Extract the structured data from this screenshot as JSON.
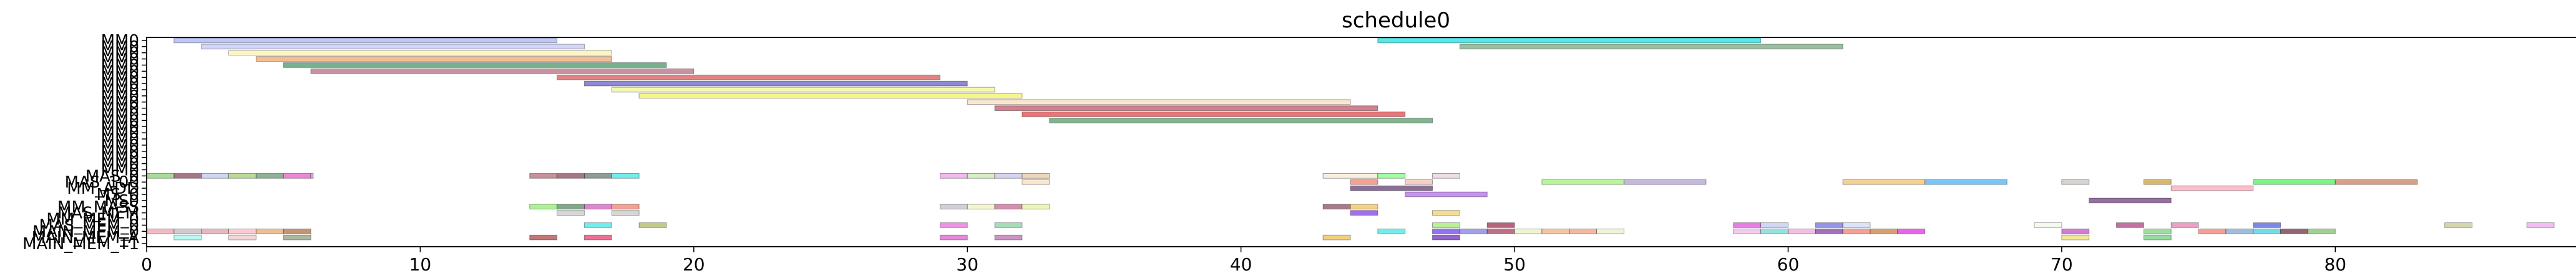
{
  "chart_data": {
    "type": "gantt",
    "title": "schedule0",
    "xlim": [
      0,
      88
    ],
    "x_ticks": [
      0,
      10,
      20,
      30,
      40,
      50,
      60,
      70,
      80
    ],
    "grid": false,
    "legend": "none",
    "row_labels": [
      "MM0",
      "MM0",
      "MM0",
      "MM0",
      "MM0",
      "MM0",
      "MM0",
      "MM0",
      "MM0",
      "MM0",
      "MM0",
      "MM0",
      "MM0",
      "MM0",
      "MM0",
      "MM0",
      "MM0",
      "MM0",
      "MM0",
      "MM0",
      "MM0",
      "MM0",
      "MAS_0",
      "MAS_100",
      "MM_ADD",
      "MS_0",
      "MS0",
      "MM_MASS",
      "MAS_MEM",
      "MM_MEM_0",
      "MAS_MEM_0",
      "MAIN_MEM_0",
      "MAIN_MEM_A",
      "MAIN_MEM_T1"
    ],
    "tasks": [
      {
        "row": 0,
        "start": 1.0,
        "end": 15.0,
        "color": "#aab4f0"
      },
      {
        "row": 0,
        "start": 45.0,
        "end": 59.0,
        "color": "#22e0e0"
      },
      {
        "row": 1,
        "start": 2.0,
        "end": 16.0,
        "color": "#c6c8f4"
      },
      {
        "row": 1,
        "start": 48.0,
        "end": 62.0,
        "color": "#7aa87e"
      },
      {
        "row": 2,
        "start": 3.0,
        "end": 17.0,
        "color": "#faf0b0"
      },
      {
        "row": 3,
        "start": 4.0,
        "end": 17.0,
        "color": "#f0a870"
      },
      {
        "row": 4,
        "start": 5.0,
        "end": 19.0,
        "color": "#4a9a6a"
      },
      {
        "row": 5,
        "start": 6.0,
        "end": 20.0,
        "color": "#b86c80"
      },
      {
        "row": 6,
        "start": 15.0,
        "end": 29.0,
        "color": "#d85a5a"
      },
      {
        "row": 7,
        "start": 16.0,
        "end": 30.0,
        "color": "#6a62c8"
      },
      {
        "row": 8,
        "start": 17.0,
        "end": 31.0,
        "color": "#f0f590"
      },
      {
        "row": 9,
        "start": 18.0,
        "end": 32.0,
        "color": "#f4f060"
      },
      {
        "row": 10,
        "start": 30.0,
        "end": 44.0,
        "color": "#f8dcc0"
      },
      {
        "row": 11,
        "start": 31.0,
        "end": 45.0,
        "color": "#c25868"
      },
      {
        "row": 12,
        "start": 32.0,
        "end": 46.0,
        "color": "#e0484c"
      },
      {
        "row": 13,
        "start": 33.0,
        "end": 47.0,
        "color": "#5a9a6c"
      },
      {
        "row": 22,
        "start": 0.0,
        "end": 1.0,
        "color": "#8cd070"
      },
      {
        "row": 22,
        "start": 1.0,
        "end": 2.0,
        "color": "#8a4a5a"
      },
      {
        "row": 22,
        "start": 2.0,
        "end": 3.0,
        "color": "#c0c8ee"
      },
      {
        "row": 22,
        "start": 3.0,
        "end": 4.0,
        "color": "#a0d070"
      },
      {
        "row": 22,
        "start": 4.0,
        "end": 5.0,
        "color": "#6a9a70"
      },
      {
        "row": 22,
        "start": 5.0,
        "end": 6.0,
        "color": "#e860c8"
      },
      {
        "row": 22,
        "start": 6.0,
        "end": 6.0,
        "color": "#b0a8ec"
      },
      {
        "row": 22,
        "start": 14.0,
        "end": 15.0,
        "color": "#b86a7a"
      },
      {
        "row": 22,
        "start": 15.0,
        "end": 16.0,
        "color": "#8a4a5a"
      },
      {
        "row": 22,
        "start": 16.0,
        "end": 17.0,
        "color": "#6a7a70"
      },
      {
        "row": 22,
        "start": 17.0,
        "end": 18.0,
        "color": "#40e8e8"
      },
      {
        "row": 22,
        "start": 29.0,
        "end": 30.0,
        "color": "#f0a0e8"
      },
      {
        "row": 22,
        "start": 30.0,
        "end": 31.0,
        "color": "#c8e8b0"
      },
      {
        "row": 22,
        "start": 31.0,
        "end": 32.0,
        "color": "#c8c4ee"
      },
      {
        "row": 22,
        "start": 32.0,
        "end": 33.0,
        "color": "#e8c8a0"
      },
      {
        "row": 22,
        "start": 43.0,
        "end": 45.0,
        "color": "#f8e8d0"
      },
      {
        "row": 22,
        "start": 45.0,
        "end": 46.0,
        "color": "#80ff80"
      },
      {
        "row": 22,
        "start": 47.0,
        "end": 48.0,
        "color": "#e8d0e0"
      },
      {
        "row": 23,
        "start": 32.0,
        "end": 33.0,
        "color": "#f8dcc0"
      },
      {
        "row": 23,
        "start": 44.0,
        "end": 45.0,
        "color": "#f08070"
      },
      {
        "row": 23,
        "start": 46.0,
        "end": 47.0,
        "color": "#f0c0b0"
      },
      {
        "row": 23,
        "start": 51.0,
        "end": 54.0,
        "color": "#a0f078"
      },
      {
        "row": 23,
        "start": 54.0,
        "end": 57.0,
        "color": "#b0a0d0"
      },
      {
        "row": 23,
        "start": 62.0,
        "end": 65.0,
        "color": "#f0c070"
      },
      {
        "row": 23,
        "start": 65.0,
        "end": 68.0,
        "color": "#50b0f0"
      },
      {
        "row": 23,
        "start": 70.0,
        "end": 71.0,
        "color": "#c8c4c0"
      },
      {
        "row": 23,
        "start": 73.0,
        "end": 74.0,
        "color": "#c8a040"
      },
      {
        "row": 23,
        "start": 77.0,
        "end": 80.0,
        "color": "#50ee60"
      },
      {
        "row": 23,
        "start": 80.0,
        "end": 83.0,
        "color": "#c88060"
      },
      {
        "row": 24,
        "start": 44.0,
        "end": 47.0,
        "color": "#604070"
      },
      {
        "row": 24,
        "start": 74.0,
        "end": 77.0,
        "color": "#f8a8b8"
      },
      {
        "row": 25,
        "start": 46.0,
        "end": 49.0,
        "color": "#b070e8"
      },
      {
        "row": 26,
        "start": 71.0,
        "end": 74.0,
        "color": "#704080"
      },
      {
        "row": 27,
        "start": 14.0,
        "end": 15.0,
        "color": "#90ee70"
      },
      {
        "row": 27,
        "start": 15.0,
        "end": 16.0,
        "color": "#5a8a60"
      },
      {
        "row": 27,
        "start": 16.0,
        "end": 17.0,
        "color": "#d060c0"
      },
      {
        "row": 27,
        "start": 17.0,
        "end": 18.0,
        "color": "#f08070"
      },
      {
        "row": 27,
        "start": 29.0,
        "end": 30.0,
        "color": "#c0c0c8"
      },
      {
        "row": 27,
        "start": 30.0,
        "end": 31.0,
        "color": "#f0f0c0"
      },
      {
        "row": 27,
        "start": 31.0,
        "end": 32.0,
        "color": "#c86a90"
      },
      {
        "row": 27,
        "start": 32.0,
        "end": 33.0,
        "color": "#e8f0a0"
      },
      {
        "row": 27,
        "start": 43.0,
        "end": 44.0,
        "color": "#8a5060"
      },
      {
        "row": 27,
        "start": 44.0,
        "end": 45.0,
        "color": "#f0c060"
      },
      {
        "row": 28,
        "start": 15.0,
        "end": 16.0,
        "color": "#c8c8c8"
      },
      {
        "row": 28,
        "start": 17.0,
        "end": 18.0,
        "color": "#c8c8c8"
      },
      {
        "row": 28,
        "start": 44.0,
        "end": 45.0,
        "color": "#8040e0"
      },
      {
        "row": 28,
        "start": 47.0,
        "end": 48.0,
        "color": "#f0d070"
      },
      {
        "row": 30,
        "start": 16.0,
        "end": 17.0,
        "color": "#40e8e8"
      },
      {
        "row": 30,
        "start": 18.0,
        "end": 19.0,
        "color": "#b0b860"
      },
      {
        "row": 30,
        "start": 29.0,
        "end": 30.0,
        "color": "#e870d8"
      },
      {
        "row": 30,
        "start": 31.0,
        "end": 32.0,
        "color": "#8ad0a0"
      },
      {
        "row": 30,
        "start": 47.0,
        "end": 48.0,
        "color": "#a0ee70"
      },
      {
        "row": 30,
        "start": 49.0,
        "end": 50.0,
        "color": "#a03050"
      },
      {
        "row": 30,
        "start": 58.0,
        "end": 59.0,
        "color": "#e050e0"
      },
      {
        "row": 30,
        "start": 59.0,
        "end": 60.0,
        "color": "#c0c8f0"
      },
      {
        "row": 30,
        "start": 61.0,
        "end": 62.0,
        "color": "#7070e0"
      },
      {
        "row": 30,
        "start": 62.0,
        "end": 63.0,
        "color": "#d0d8f8"
      },
      {
        "row": 30,
        "start": 69.0,
        "end": 70.0,
        "color": "#f0f8e8"
      },
      {
        "row": 30,
        "start": 72.0,
        "end": 73.0,
        "color": "#b04080"
      },
      {
        "row": 30,
        "start": 74.0,
        "end": 75.0,
        "color": "#e880b0"
      },
      {
        "row": 30,
        "start": 77.0,
        "end": 78.0,
        "color": "#5060e0"
      },
      {
        "row": 30,
        "start": 84.0,
        "end": 85.0,
        "color": "#c8c890"
      },
      {
        "row": 30,
        "start": 87.0,
        "end": 88.0,
        "color": "#f0a8f0"
      },
      {
        "row": 31,
        "start": 0.0,
        "end": 1.0,
        "color": "#f0a0b0"
      },
      {
        "row": 31,
        "start": 1.0,
        "end": 2.0,
        "color": "#c0b8c0"
      },
      {
        "row": 31,
        "start": 2.0,
        "end": 3.0,
        "color": "#e0a0a8"
      },
      {
        "row": 31,
        "start": 3.0,
        "end": 4.0,
        "color": "#f8b8c0"
      },
      {
        "row": 31,
        "start": 4.0,
        "end": 5.0,
        "color": "#e8a870"
      },
      {
        "row": 31,
        "start": 5.0,
        "end": 6.0,
        "color": "#b07040"
      },
      {
        "row": 31,
        "start": 45.0,
        "end": 46.0,
        "color": "#40e8e8"
      },
      {
        "row": 31,
        "start": 47.0,
        "end": 48.0,
        "color": "#7040f0"
      },
      {
        "row": 31,
        "start": 48.0,
        "end": 49.0,
        "color": "#8080e0"
      },
      {
        "row": 31,
        "start": 49.0,
        "end": 50.0,
        "color": "#a84060"
      },
      {
        "row": 31,
        "start": 50.0,
        "end": 51.0,
        "color": "#e8f0c0"
      },
      {
        "row": 31,
        "start": 51.0,
        "end": 52.0,
        "color": "#f0b080"
      },
      {
        "row": 31,
        "start": 52.0,
        "end": 53.0,
        "color": "#f0a080"
      },
      {
        "row": 31,
        "start": 53.0,
        "end": 54.0,
        "color": "#e8f0c8"
      },
      {
        "row": 31,
        "start": 58.0,
        "end": 59.0,
        "color": "#f0b8e8"
      },
      {
        "row": 31,
        "start": 59.0,
        "end": 60.0,
        "color": "#70d8d8"
      },
      {
        "row": 31,
        "start": 60.0,
        "end": 61.0,
        "color": "#f0a8d8"
      },
      {
        "row": 31,
        "start": 61.0,
        "end": 62.0,
        "color": "#8040a0"
      },
      {
        "row": 31,
        "start": 62.0,
        "end": 63.0,
        "color": "#f08070"
      },
      {
        "row": 31,
        "start": 63.0,
        "end": 64.0,
        "color": "#c88040"
      },
      {
        "row": 31,
        "start": 64.0,
        "end": 65.0,
        "color": "#e030e0"
      },
      {
        "row": 31,
        "start": 70.0,
        "end": 71.0,
        "color": "#c050c0"
      },
      {
        "row": 31,
        "start": 73.0,
        "end": 74.0,
        "color": "#80d080"
      },
      {
        "row": 31,
        "start": 75.0,
        "end": 76.0,
        "color": "#f08070"
      },
      {
        "row": 31,
        "start": 76.0,
        "end": 77.0,
        "color": "#80a8d0"
      },
      {
        "row": 31,
        "start": 77.0,
        "end": 78.0,
        "color": "#40d0e0"
      },
      {
        "row": 31,
        "start": 78.0,
        "end": 79.0,
        "color": "#703040"
      },
      {
        "row": 31,
        "start": 79.0,
        "end": 80.0,
        "color": "#80c070"
      },
      {
        "row": 32,
        "start": 1.0,
        "end": 2.0,
        "color": "#a0f8f0"
      },
      {
        "row": 32,
        "start": 3.0,
        "end": 4.0,
        "color": "#f0c8c8"
      },
      {
        "row": 32,
        "start": 5.0,
        "end": 6.0,
        "color": "#90a080"
      },
      {
        "row": 32,
        "start": 14.0,
        "end": 15.0,
        "color": "#b04848"
      },
      {
        "row": 32,
        "start": 16.0,
        "end": 17.0,
        "color": "#e84070"
      },
      {
        "row": 32,
        "start": 29.0,
        "end": 30.0,
        "color": "#e060d0"
      },
      {
        "row": 32,
        "start": 31.0,
        "end": 32.0,
        "color": "#c070b0"
      },
      {
        "row": 32,
        "start": 43.0,
        "end": 44.0,
        "color": "#f0c050"
      },
      {
        "row": 32,
        "start": 47.0,
        "end": 48.0,
        "color": "#7030c0"
      },
      {
        "row": 32,
        "start": 70.0,
        "end": 71.0,
        "color": "#f0e070"
      },
      {
        "row": 32,
        "start": 73.0,
        "end": 74.0,
        "color": "#70d080"
      }
    ]
  }
}
